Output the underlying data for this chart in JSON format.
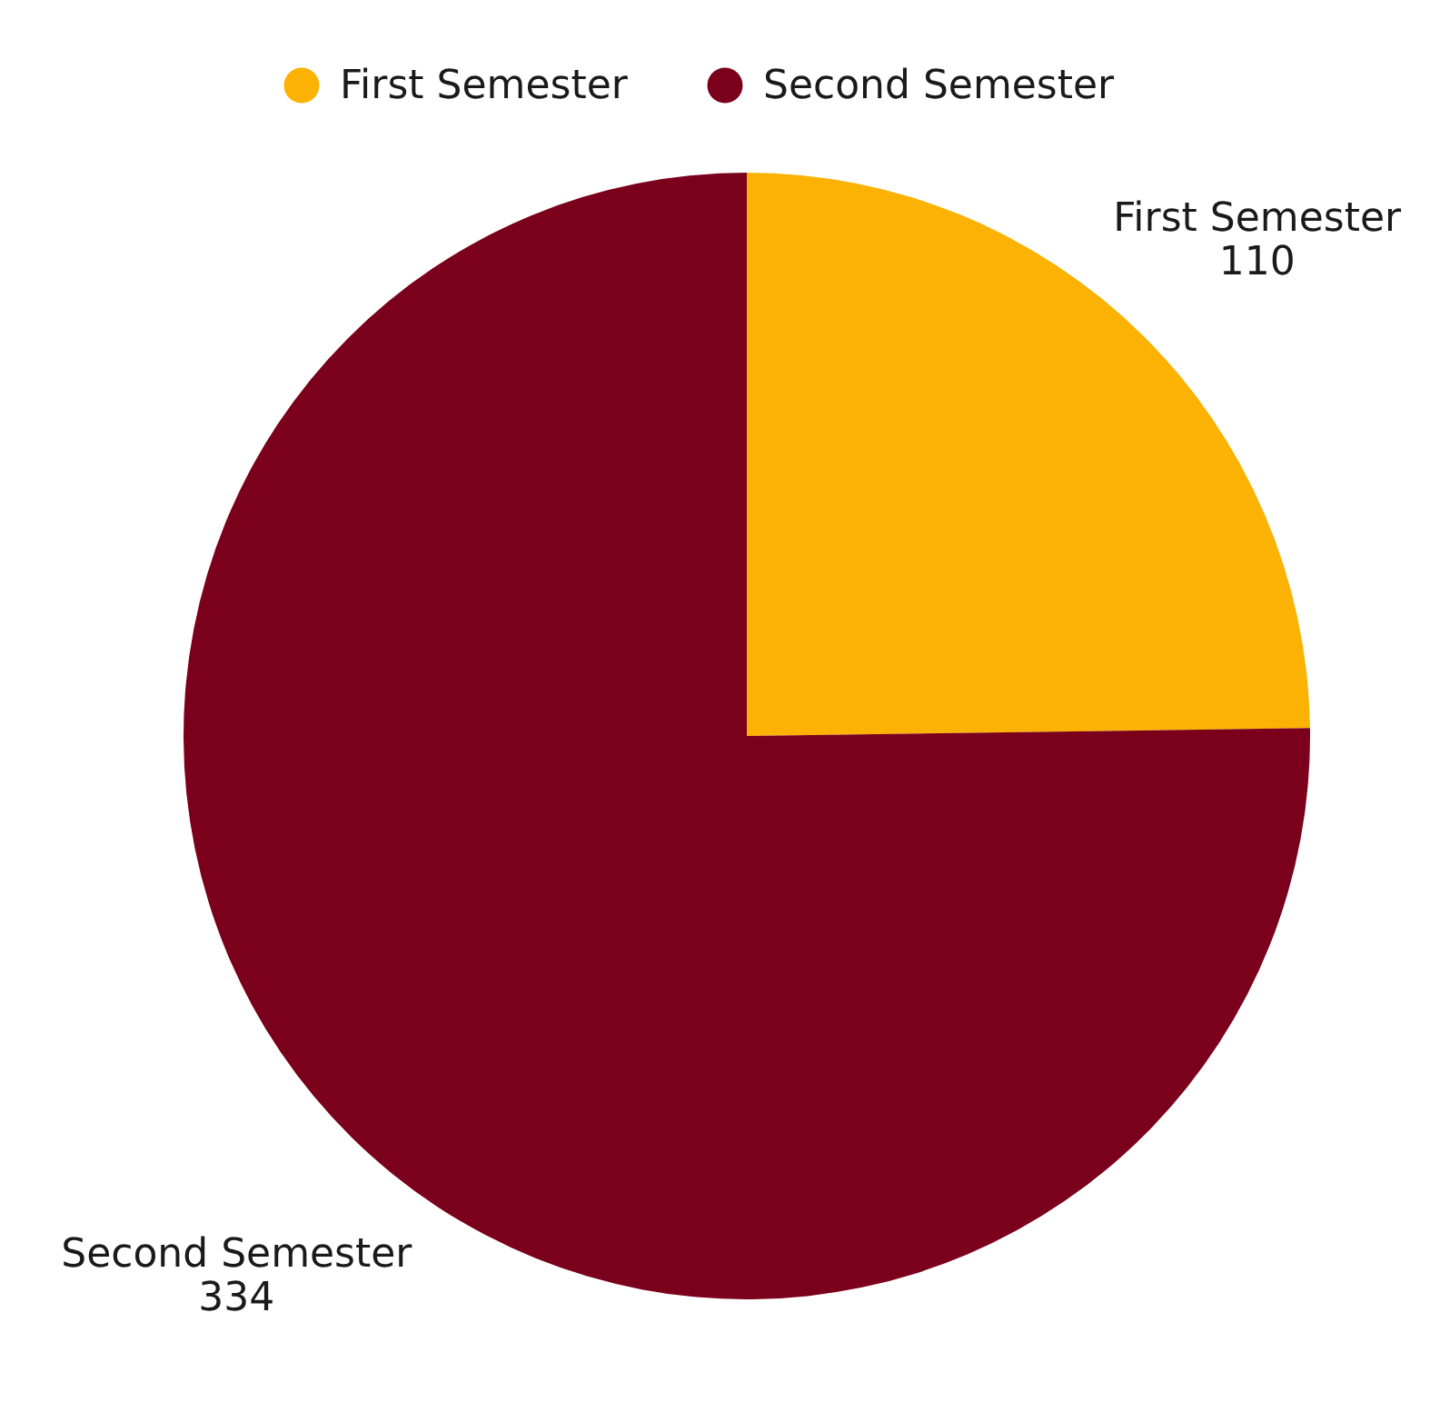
{
  "chart_data": {
    "type": "pie",
    "categories": [
      "First Semester",
      "Second Semester"
    ],
    "values": [
      110,
      334
    ],
    "colors": [
      "#fbb202",
      "#7a001b"
    ],
    "data_labels": true,
    "legend": "top"
  }
}
